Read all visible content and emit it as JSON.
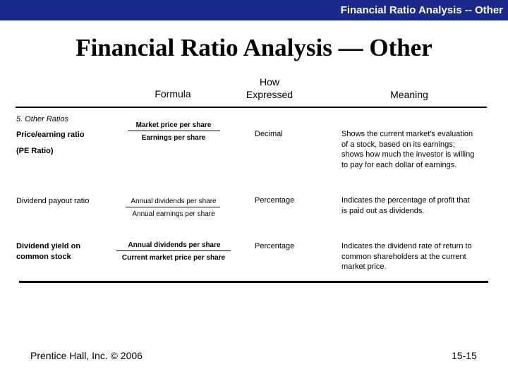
{
  "header_bar": {
    "text": "Financial Ratio Analysis -- Other",
    "bg_color": "#1a2a8c"
  },
  "title": "Financial Ratio Analysis — Other",
  "columns": {
    "formula": "Formula",
    "how_expressed_line1": "How",
    "how_expressed_line2": "Expressed",
    "meaning": "Meaning"
  },
  "section_label": "5. Other Ratios",
  "rows": [
    {
      "name": "Price/earning ratio",
      "name_extra": "(PE Ratio)",
      "numerator": "Market price per share",
      "denominator": "Earnings per share",
      "expressed": "Decimal",
      "meaning_lines": [
        "Shows the current market's evaluation",
        "of a stock, based on its earnings;",
        "shows how much the investor is willing",
        "to pay for each dollar of earnings."
      ]
    },
    {
      "name": "Dividend payout ratio",
      "numerator": "Annual dividends per share",
      "denominator": "Annual earnings per share",
      "expressed": "Percentage",
      "meaning_lines": [
        "Indicates the percentage of profit that",
        "is paid out as dividends."
      ]
    },
    {
      "name_line1": "Dividend yield on",
      "name_line2": "common stock",
      "numerator": "Annual dividends per share",
      "denominator": "Current market price per share",
      "expressed": "Percentage",
      "meaning_lines": [
        "Indicates the dividend rate of return to",
        "common shareholders at the current",
        "market price."
      ]
    }
  ],
  "footer": {
    "publisher": "Prentice Hall, Inc. ©  2006",
    "page": "15-15"
  }
}
